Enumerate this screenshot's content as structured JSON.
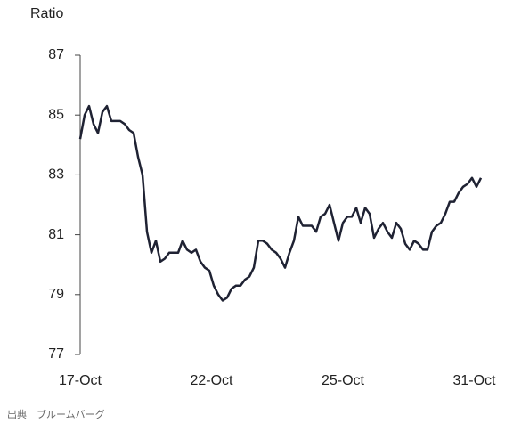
{
  "chart_data": {
    "type": "line",
    "y_label": "Ratio",
    "source": "出典　ブルームバーグ",
    "color": "#1f2233",
    "values": [
      84.2,
      85.0,
      85.3,
      84.7,
      84.4,
      85.1,
      85.3,
      84.8,
      84.8,
      84.8,
      84.7,
      84.5,
      84.4,
      83.6,
      83.0,
      81.1,
      80.4,
      80.8,
      80.1,
      80.2,
      80.4,
      80.4,
      80.4,
      80.8,
      80.5,
      80.4,
      80.5,
      80.1,
      79.9,
      79.8,
      79.3,
      79.0,
      78.8,
      78.9,
      79.2,
      79.3,
      79.3,
      79.5,
      79.6,
      79.9,
      80.8,
      80.8,
      80.7,
      80.5,
      80.4,
      80.2,
      79.9,
      80.4,
      80.8,
      81.6,
      81.3,
      81.3,
      81.3,
      81.1,
      81.6,
      81.7,
      82.0,
      81.4,
      80.8,
      81.4,
      81.6,
      81.6,
      81.9,
      81.4,
      81.9,
      81.7,
      80.9,
      81.2,
      81.4,
      81.1,
      80.9,
      81.4,
      81.2,
      80.7,
      80.5,
      80.8,
      80.7,
      80.5,
      80.5,
      81.1,
      81.3,
      81.4,
      81.7,
      82.1,
      82.1,
      82.4,
      82.6,
      82.7,
      82.9,
      82.6,
      82.9
    ],
    "xlim": [
      -0.4,
      90.4
    ],
    "xticks": [
      {
        "value": 0,
        "label": "17-Oct"
      },
      {
        "value": 29.5,
        "label": "22-Oct"
      },
      {
        "value": 59,
        "label": "25-Oct"
      },
      {
        "value": 88.5,
        "label": "31-Oct"
      }
    ],
    "ylim": [
      77,
      87
    ],
    "yticks": [
      77,
      79,
      81,
      83,
      85,
      87
    ],
    "grid": false
  }
}
